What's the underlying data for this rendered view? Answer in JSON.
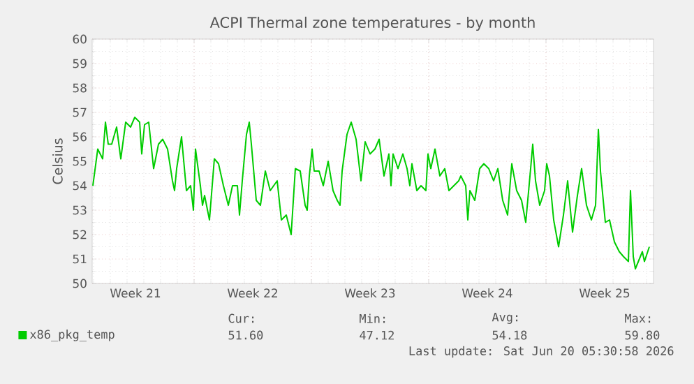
{
  "chart_data": {
    "type": "line",
    "title": "ACPI Thermal zone temperatures - by month",
    "ylabel": "Celsius",
    "xlim": [
      "2026-05-17T22:00",
      "2026-06-20T10:00"
    ],
    "ylim": [
      50,
      60
    ],
    "xticks": [
      {
        "value": "2026-05-24",
        "label": null
      },
      {
        "value": "2026-05-31",
        "label": null
      },
      {
        "value": "2026-06-07",
        "label": null
      },
      {
        "value": "2026-06-14",
        "label": null
      },
      {
        "value": "2026-05-20T12:00",
        "label": "Week 21"
      },
      {
        "value": "2026-05-27T12:00",
        "label": "Week 22"
      },
      {
        "value": "2026-06-03T12:00",
        "label": "Week 23"
      },
      {
        "value": "2026-06-10T12:00",
        "label": "Week 24"
      },
      {
        "value": "2026-06-17T12:00",
        "label": "Week 25"
      }
    ],
    "yticks": [
      50,
      51,
      52,
      53,
      54,
      55,
      56,
      57,
      58,
      59,
      60
    ],
    "grid": true,
    "legend": "bottom left",
    "series": [
      {
        "name": "x86_pkg_temp",
        "color": "#00cc00",
        "x": [
          "2026-05-17T23:00",
          "2026-05-18T06:00",
          "2026-05-18T13:00",
          "2026-05-18T17:00",
          "2026-05-18T21:00",
          "2026-05-19T02:00",
          "2026-05-19T09:00",
          "2026-05-19T15:00",
          "2026-05-19T22:00",
          "2026-05-20T05:00",
          "2026-05-20T11:00",
          "2026-05-20T18:00",
          "2026-05-20T21:00",
          "2026-05-21T01:00",
          "2026-05-21T07:00",
          "2026-05-21T14:00",
          "2026-05-21T21:00",
          "2026-05-22T03:00",
          "2026-05-22T10:00",
          "2026-05-22T17:00",
          "2026-05-22T20:00",
          "2026-05-22T23:00",
          "2026-05-23T06:00",
          "2026-05-23T13:00",
          "2026-05-23T19:00",
          "2026-05-23T23:00",
          "2026-05-24T02:00",
          "2026-05-24T09:00",
          "2026-05-24T12:00",
          "2026-05-24T15:00",
          "2026-05-24T22:00",
          "2026-05-25T05:00",
          "2026-05-25T11:00",
          "2026-05-25T18:00",
          "2026-05-26T01:00",
          "2026-05-26T07:00",
          "2026-05-26T14:00",
          "2026-05-26T17:00",
          "2026-05-26T21:00",
          "2026-05-27T03:00",
          "2026-05-27T07:00",
          "2026-05-27T10:00",
          "2026-05-27T17:00",
          "2026-05-27T23:00",
          "2026-05-28T06:00",
          "2026-05-28T13:00",
          "2026-05-28T23:00",
          "2026-05-29T05:00",
          "2026-05-29T12:00",
          "2026-05-29T19:00",
          "2026-05-30T01:00",
          "2026-05-30T08:00",
          "2026-05-30T15:00",
          "2026-05-30T18:00",
          "2026-05-30T21:00",
          "2026-05-31T01:00",
          "2026-05-31T04:00",
          "2026-05-31T11:00",
          "2026-05-31T17:00",
          "2026-06-01T00:00",
          "2026-06-01T07:00",
          "2026-06-01T13:00",
          "2026-06-01T17:00",
          "2026-06-01T20:00",
          "2026-06-02T03:00",
          "2026-06-02T09:00",
          "2026-06-02T16:00",
          "2026-06-02T23:00",
          "2026-06-03T05:00",
          "2026-06-03T12:00",
          "2026-06-03T19:00",
          "2026-06-04T01:00",
          "2026-06-04T08:00",
          "2026-06-04T15:00",
          "2026-06-04T18:00",
          "2026-06-04T21:00",
          "2026-06-05T04:00",
          "2026-06-05T11:00",
          "2026-06-05T17:00",
          "2026-06-05T21:00",
          "2026-06-06T00:00",
          "2026-06-06T07:00",
          "2026-06-06T13:00",
          "2026-06-06T20:00",
          "2026-06-06T23:00",
          "2026-06-07T03:00",
          "2026-06-07T09:00",
          "2026-06-07T16:00",
          "2026-06-07T23:00",
          "2026-06-08T05:00",
          "2026-06-08T12:00",
          "2026-06-08T19:00",
          "2026-06-08T22:00",
          "2026-06-09T05:00",
          "2026-06-09T08:00",
          "2026-06-09T11:00",
          "2026-06-09T18:00",
          "2026-06-10T01:00",
          "2026-06-10T07:00",
          "2026-06-10T14:00",
          "2026-06-10T21:00",
          "2026-06-11T03:00",
          "2026-06-11T10:00",
          "2026-06-11T17:00",
          "2026-06-11T23:00",
          "2026-06-12T06:00",
          "2026-06-12T13:00",
          "2026-06-12T19:00",
          "2026-06-13T02:00",
          "2026-06-13T05:00",
          "2026-06-13T09:00",
          "2026-06-13T15:00",
          "2026-06-13T22:00",
          "2026-06-14T01:00",
          "2026-06-14T05:00",
          "2026-06-14T11:00",
          "2026-06-14T18:00",
          "2026-06-15T01:00",
          "2026-06-15T07:00",
          "2026-06-15T14:00",
          "2026-06-15T21:00",
          "2026-06-16T03:00",
          "2026-06-16T10:00",
          "2026-06-16T17:00",
          "2026-06-16T23:00",
          "2026-06-17T03:00",
          "2026-06-17T06:00",
          "2026-06-17T13:00",
          "2026-06-17T19:00",
          "2026-06-18T02:00",
          "2026-06-18T09:00",
          "2026-06-18T15:00",
          "2026-06-18T22:00",
          "2026-06-19T01:00",
          "2026-06-19T05:00",
          "2026-06-19T08:00",
          "2026-06-19T18:00",
          "2026-06-19T21:00",
          "2026-06-20T04:00"
        ],
        "values": [
          54.0,
          55.5,
          55.1,
          56.6,
          55.7,
          55.7,
          56.4,
          55.1,
          56.6,
          56.4,
          56.8,
          56.6,
          55.3,
          56.5,
          56.6,
          54.7,
          55.7,
          55.9,
          55.5,
          54.2,
          53.8,
          54.7,
          56.0,
          53.8,
          54.0,
          53.0,
          55.5,
          54.0,
          53.2,
          53.6,
          52.6,
          55.1,
          54.9,
          54.0,
          53.2,
          54.0,
          54.0,
          52.8,
          54.2,
          56.1,
          56.6,
          55.7,
          53.4,
          53.2,
          54.6,
          53.8,
          54.2,
          52.6,
          52.8,
          52.0,
          54.7,
          54.6,
          53.2,
          53.0,
          54.4,
          55.5,
          54.6,
          54.6,
          54.0,
          55.0,
          53.8,
          53.4,
          53.2,
          54.6,
          56.1,
          56.6,
          55.9,
          54.2,
          55.8,
          55.3,
          55.5,
          55.9,
          54.4,
          55.3,
          54.0,
          55.3,
          54.7,
          55.3,
          54.7,
          54.0,
          54.9,
          53.8,
          54.0,
          53.8,
          55.3,
          54.7,
          55.5,
          54.4,
          54.7,
          53.8,
          54.0,
          54.2,
          54.4,
          54.0,
          52.6,
          53.8,
          53.4,
          54.7,
          54.9,
          54.7,
          54.2,
          54.7,
          53.4,
          52.8,
          54.9,
          53.8,
          53.4,
          52.5,
          54.7,
          55.7,
          54.2,
          53.2,
          53.8,
          54.9,
          54.4,
          52.6,
          51.5,
          52.8,
          54.2,
          52.1,
          53.6,
          54.7,
          53.2,
          52.6,
          53.2,
          56.3,
          54.6,
          52.5,
          52.6,
          51.7,
          51.3,
          51.1,
          50.9,
          53.8,
          51.1,
          50.6,
          51.3,
          50.9,
          51.5
        ]
      }
    ],
    "annotations": [
      "Cur:",
      "51.60",
      "Min:",
      "47.12",
      "Avg:",
      "54.18",
      "Max:",
      "59.80",
      "Last update: Sat Jun 20 05:30:58 2026"
    ]
  }
}
